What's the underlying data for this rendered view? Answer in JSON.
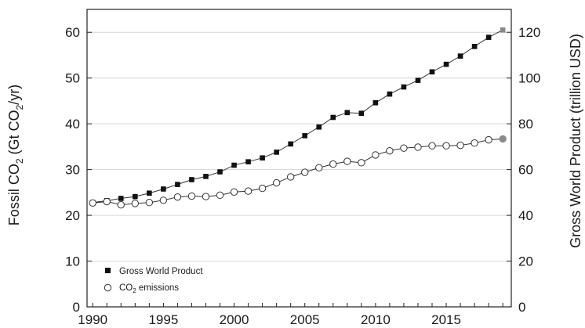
{
  "chart_data": {
    "type": "line",
    "x": [
      1990,
      1991,
      1992,
      1993,
      1994,
      1995,
      1996,
      1997,
      1998,
      1999,
      2000,
      2001,
      2002,
      2003,
      2004,
      2005,
      2006,
      2007,
      2008,
      2009,
      2010,
      2011,
      2012,
      2013,
      2014,
      2015,
      2016,
      2017,
      2018,
      2019
    ],
    "xlim": [
      1989.6,
      2019.6
    ],
    "x_ticks": [
      1990,
      1995,
      2000,
      2005,
      2010,
      2015
    ],
    "grid": "horizontal",
    "legend_position": "bottom-left",
    "left_axis": {
      "label": "Fossil CO",
      "label_sub": "2",
      "label_mid": " (Gt CO",
      "label_sub2": "2",
      "label_end": "/yr)",
      "ylim": [
        0,
        65
      ],
      "ticks": [
        0,
        10,
        20,
        30,
        40,
        50,
        60
      ]
    },
    "right_axis": {
      "label": "Gross World Product (trillion USD)",
      "ylim": [
        0,
        130
      ],
      "ticks": [
        0,
        20,
        40,
        60,
        80,
        100,
        120
      ]
    },
    "series": [
      {
        "name": "Gross World Product",
        "axis": "right",
        "marker": "filled-square",
        "values": [
          45.6,
          46.4,
          47.4,
          48.2,
          49.7,
          51.5,
          53.5,
          55.6,
          57.0,
          59.0,
          61.9,
          63.4,
          65.1,
          67.6,
          71.2,
          74.8,
          78.6,
          82.8,
          84.9,
          84.6,
          89.2,
          93.0,
          96.1,
          99.0,
          102.7,
          106.0,
          109.6,
          113.8,
          117.8,
          121.0
        ],
        "color": "#111111"
      },
      {
        "name": "CO",
        "name_sub": "2",
        "name_end": " emissions",
        "axis": "left",
        "marker": "open-circle",
        "values": [
          22.7,
          23.0,
          22.3,
          22.6,
          22.8,
          23.3,
          24.0,
          24.2,
          24.1,
          24.4,
          25.1,
          25.3,
          25.9,
          27.1,
          28.4,
          29.4,
          30.4,
          31.2,
          31.8,
          31.5,
          33.2,
          34.1,
          34.7,
          34.9,
          35.2,
          35.2,
          35.3,
          35.8,
          36.5,
          36.7
        ],
        "color": "#333333"
      }
    ],
    "endpoint_color": "#8a8a8a"
  }
}
